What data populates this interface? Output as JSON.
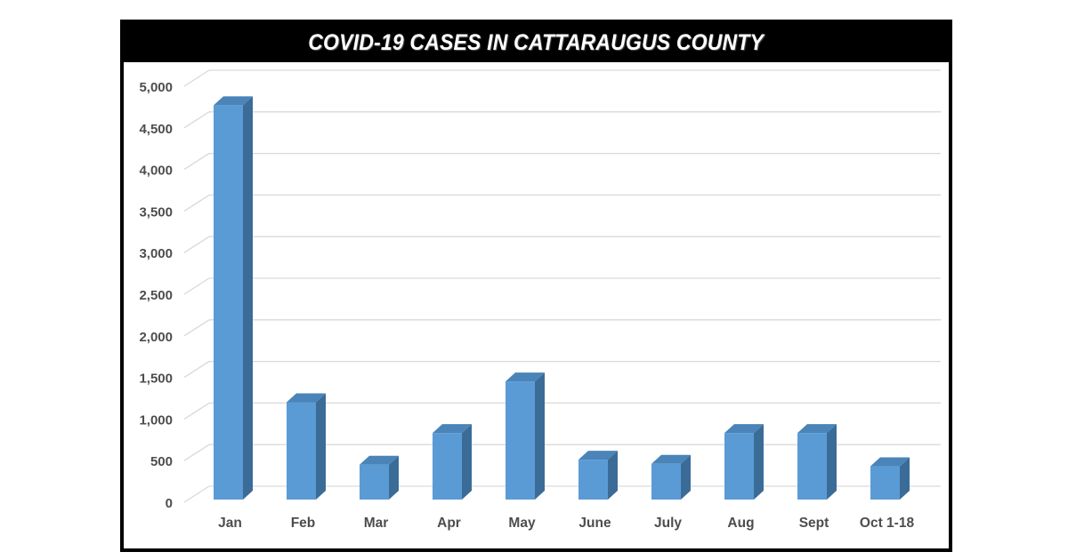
{
  "chart_data": {
    "type": "bar",
    "style": "3d-column",
    "title": "COVID-19 CASES IN CATTARAUGUS COUNTY",
    "xlabel": "",
    "ylabel": "",
    "categories": [
      "Jan",
      "Feb",
      "Mar",
      "Apr",
      "May",
      "June",
      "July",
      "Aug",
      "Sept",
      "Oct 1-18"
    ],
    "values": [
      4740,
      1170,
      420,
      800,
      1420,
      480,
      430,
      800,
      800,
      400
    ],
    "ylim": [
      0,
      5000
    ],
    "yticks": [
      0,
      500,
      1000,
      1500,
      2000,
      2500,
      3000,
      3500,
      4000,
      4500,
      5000
    ],
    "ytick_labels": [
      "0",
      "500",
      "1,000",
      "1,500",
      "2,000",
      "2,500",
      "3,000",
      "3,500",
      "4,000",
      "4,500",
      "5,000"
    ],
    "grid": true,
    "legend": null,
    "colors": {
      "bar_front": "#5b9bd5",
      "bar_side": "#3b6c98",
      "bar_top": "#4a84b8",
      "gridline": "#d9d9d9",
      "title_bg": "#000000",
      "title_text": "#ffffff",
      "tick_text": "#4d4d4d"
    }
  }
}
